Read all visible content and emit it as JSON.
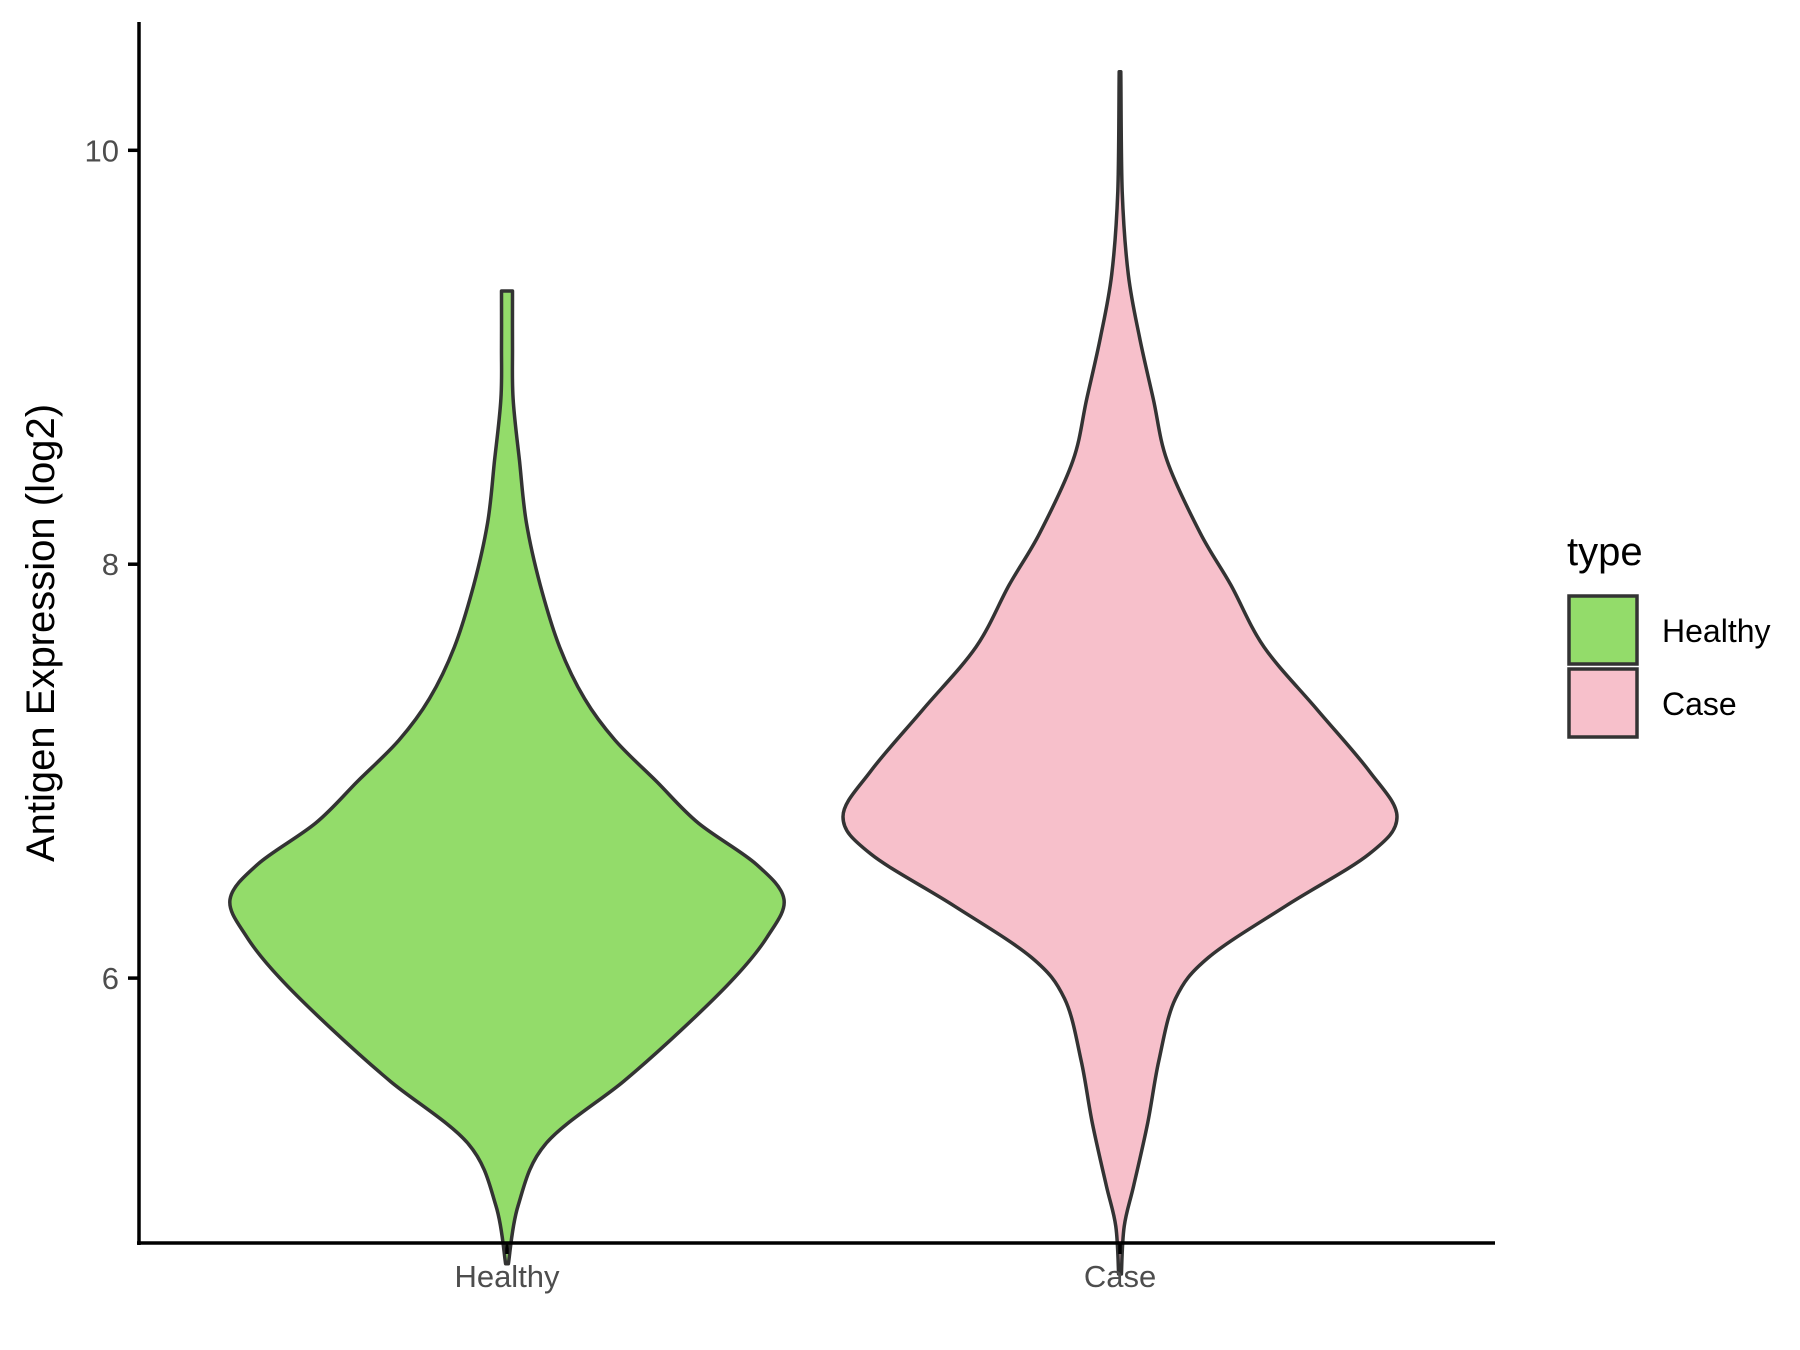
{
  "chart_data": {
    "type": "violin",
    "title": "",
    "xlabel": "",
    "ylabel": "Antigen Expression (log2)",
    "ylim": [
      4.72,
      10.62
    ],
    "yticks": [
      6,
      8,
      10
    ],
    "categories": [
      "Healthy",
      "Case"
    ],
    "legend": {
      "title": "type",
      "position": "right",
      "entries": [
        "Healthy",
        "Case"
      ]
    },
    "grid": false,
    "series": [
      {
        "name": "Healthy",
        "color": "#93dc6a",
        "min": 4.62,
        "max": 9.32,
        "density": [
          [
            4.62,
            0.005
          ],
          [
            4.9,
            0.04
          ],
          [
            5.2,
            0.14
          ],
          [
            5.5,
            0.42
          ],
          [
            5.75,
            0.63
          ],
          [
            6.0,
            0.82
          ],
          [
            6.2,
            0.94
          ],
          [
            6.38,
            1.0
          ],
          [
            6.55,
            0.9
          ],
          [
            6.75,
            0.69
          ],
          [
            6.95,
            0.54
          ],
          [
            7.15,
            0.39
          ],
          [
            7.35,
            0.28
          ],
          [
            7.6,
            0.19
          ],
          [
            7.9,
            0.12
          ],
          [
            8.2,
            0.07
          ],
          [
            8.5,
            0.045
          ],
          [
            8.8,
            0.022
          ],
          [
            9.05,
            0.02
          ],
          [
            9.32,
            0.02
          ]
        ]
      },
      {
        "name": "Case",
        "color": "#f7c0cb",
        "min": 4.57,
        "max": 10.38,
        "density": [
          [
            4.57,
            0.005
          ],
          [
            4.8,
            0.015
          ],
          [
            5.0,
            0.05
          ],
          [
            5.3,
            0.1
          ],
          [
            5.6,
            0.14
          ],
          [
            5.9,
            0.2
          ],
          [
            6.1,
            0.32
          ],
          [
            6.35,
            0.6
          ],
          [
            6.6,
            0.9
          ],
          [
            6.78,
            1.0
          ],
          [
            7.0,
            0.9
          ],
          [
            7.3,
            0.71
          ],
          [
            7.6,
            0.52
          ],
          [
            7.9,
            0.4
          ],
          [
            8.15,
            0.29
          ],
          [
            8.5,
            0.17
          ],
          [
            8.8,
            0.12
          ],
          [
            9.1,
            0.07
          ],
          [
            9.4,
            0.03
          ],
          [
            9.8,
            0.008
          ],
          [
            10.38,
            0.003
          ]
        ]
      }
    ]
  }
}
